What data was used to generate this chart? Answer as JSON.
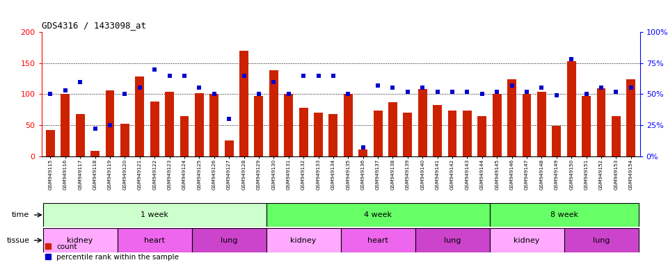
{
  "title": "GDS4316 / 1433098_at",
  "samples": [
    "GSM949115",
    "GSM949116",
    "GSM949117",
    "GSM949118",
    "GSM949119",
    "GSM949120",
    "GSM949121",
    "GSM949122",
    "GSM949123",
    "GSM949124",
    "GSM949125",
    "GSM949126",
    "GSM949127",
    "GSM949128",
    "GSM949129",
    "GSM949130",
    "GSM949131",
    "GSM949132",
    "GSM949133",
    "GSM949134",
    "GSM949135",
    "GSM949136",
    "GSM949137",
    "GSM949138",
    "GSM949139",
    "GSM949140",
    "GSM949141",
    "GSM949142",
    "GSM949143",
    "GSM949144",
    "GSM949145",
    "GSM949146",
    "GSM949147",
    "GSM949148",
    "GSM949149",
    "GSM949150",
    "GSM949151",
    "GSM949152",
    "GSM949153",
    "GSM949154"
  ],
  "count_values": [
    42,
    100,
    68,
    8,
    106,
    52,
    128,
    88,
    104,
    65,
    102,
    100,
    25,
    170,
    97,
    138,
    100,
    78,
    70,
    68,
    100,
    11,
    74,
    87,
    70,
    108,
    82,
    73,
    73,
    65,
    100,
    124,
    100,
    104,
    49,
    153,
    97,
    109,
    65,
    124
  ],
  "percentile_values": [
    50,
    53,
    60,
    22,
    25,
    50,
    55,
    70,
    65,
    65,
    55,
    50,
    30,
    65,
    50,
    60,
    50,
    65,
    65,
    65,
    50,
    7,
    57,
    55,
    52,
    55,
    52,
    52,
    52,
    50,
    52,
    57,
    52,
    55,
    49,
    78,
    50,
    55,
    52,
    55
  ],
  "ylim_left": [
    0,
    200
  ],
  "yticks_left": [
    0,
    50,
    100,
    150,
    200
  ],
  "ytick_labels_right": [
    "0%",
    "25%",
    "50%",
    "75%",
    "100%"
  ],
  "yticks_right": [
    0,
    25,
    50,
    75,
    100
  ],
  "time_groups": [
    {
      "label": "1 week",
      "start": 0,
      "end": 15,
      "color": "#ccffcc"
    },
    {
      "label": "4 week",
      "start": 15,
      "end": 30,
      "color": "#66ff66"
    },
    {
      "label": "8 week",
      "start": 30,
      "end": 40,
      "color": "#66ff66"
    }
  ],
  "tissue_groups": [
    {
      "label": "kidney",
      "start": 0,
      "end": 5,
      "color": "#ffaaff"
    },
    {
      "label": "heart",
      "start": 5,
      "end": 10,
      "color": "#ee66ee"
    },
    {
      "label": "lung",
      "start": 10,
      "end": 15,
      "color": "#cc44cc"
    },
    {
      "label": "kidney",
      "start": 15,
      "end": 20,
      "color": "#ffaaff"
    },
    {
      "label": "heart",
      "start": 20,
      "end": 25,
      "color": "#ee66ee"
    },
    {
      "label": "lung",
      "start": 25,
      "end": 30,
      "color": "#cc44cc"
    },
    {
      "label": "kidney",
      "start": 30,
      "end": 35,
      "color": "#ffaaff"
    },
    {
      "label": "lung",
      "start": 35,
      "end": 40,
      "color": "#cc44cc"
    }
  ],
  "bar_color": "#cc2200",
  "dot_color": "#0000cc",
  "bg_color": "#ffffff",
  "label_arrow_color": "#333333"
}
